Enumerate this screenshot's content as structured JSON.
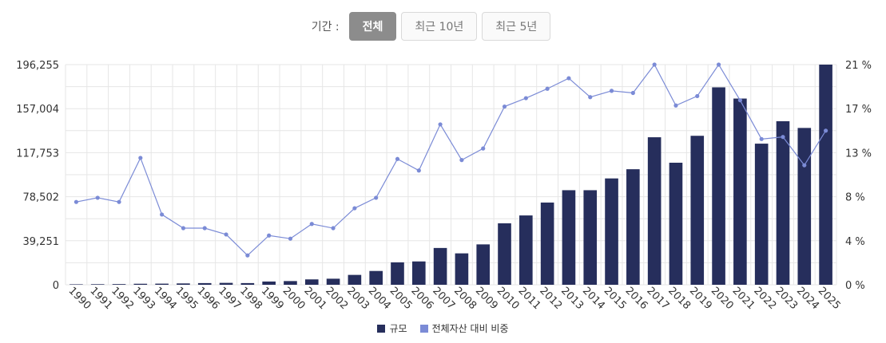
{
  "filter": {
    "label": "기간 :",
    "options": [
      "전체",
      "최근 10년",
      "최근 5년"
    ],
    "active_index": 0
  },
  "colors": {
    "bar": "#262e5c",
    "line": "#7b8bd6",
    "grid": "#e6e6e6"
  },
  "chart_data": {
    "type": "bar",
    "categories": [
      "1990",
      "1991",
      "1992",
      "1993",
      "1994",
      "1995",
      "1996",
      "1997",
      "1998",
      "1999",
      "2000",
      "2001",
      "2002",
      "2003",
      "2004",
      "2005",
      "2006",
      "2007",
      "2008",
      "2009",
      "2010",
      "2011",
      "2012",
      "2013",
      "2014",
      "2015",
      "2016",
      "2017",
      "2018",
      "2019",
      "2020",
      "2021",
      "2022",
      "2023",
      "2024",
      "2025"
    ],
    "series": [
      {
        "name": "규모",
        "type": "bar",
        "axis": "left",
        "values": [
          400,
          500,
          600,
          900,
          1000,
          1200,
          1500,
          1700,
          1500,
          2900,
          3300,
          4800,
          5400,
          8800,
          12300,
          20000,
          20800,
          32800,
          28000,
          36000,
          54800,
          61800,
          73300,
          84300,
          84300,
          94800,
          103000,
          131500,
          108800,
          132800,
          176000,
          166000,
          125800,
          145800,
          139800,
          196255
        ]
      },
      {
        "name": "전체자산 대비 비중",
        "type": "line",
        "axis": "right",
        "values": [
          7.9,
          8.3,
          7.9,
          12.1,
          6.7,
          5.4,
          5.4,
          4.8,
          2.8,
          4.7,
          4.4,
          5.8,
          5.4,
          7.3,
          8.3,
          12.0,
          10.9,
          15.3,
          11.9,
          13.0,
          17.0,
          17.8,
          18.7,
          19.7,
          17.9,
          18.5,
          18.3,
          21.0,
          17.1,
          18.0,
          21.0,
          17.6,
          13.9,
          14.1,
          11.4,
          14.7
        ]
      }
    ],
    "y_left": {
      "min": 0,
      "max": 196255,
      "ticks": [
        "0",
        "39,251",
        "78,502",
        "117,753",
        "157,004",
        "196,255"
      ]
    },
    "y_right": {
      "min": 0,
      "max": 21,
      "ticks": [
        "0 %",
        "4 %",
        "8 %",
        "13 %",
        "17 %",
        "21 %"
      ]
    },
    "grid": true,
    "legend_position": "bottom"
  }
}
